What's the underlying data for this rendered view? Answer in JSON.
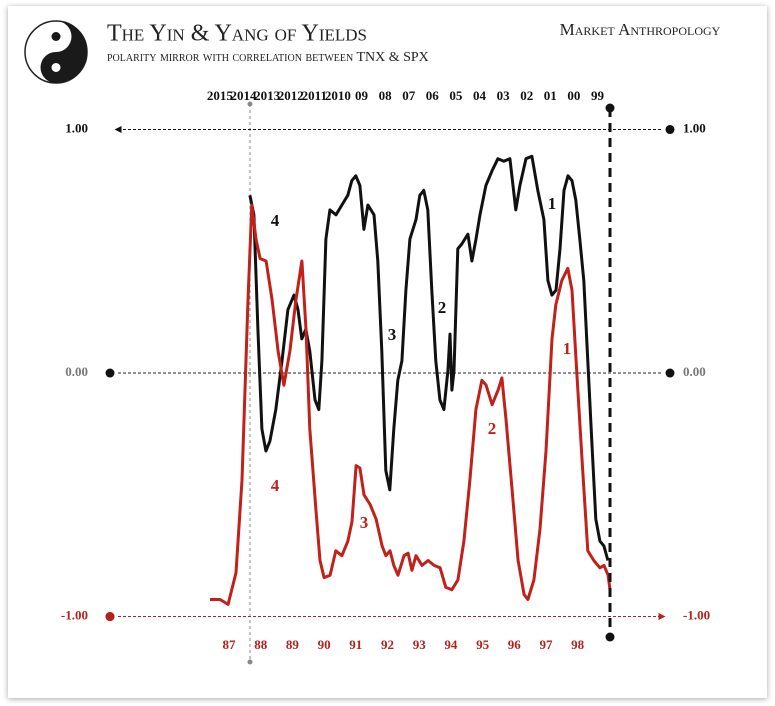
{
  "chart_data": {
    "type": "line",
    "title": "The Yin & Yang of Yields",
    "subtitle": "polarity mirror with correlation between TNX & SPX",
    "brand": "Market Anthropology",
    "ylim": [
      -1.1,
      1.12
    ],
    "yticks": [
      {
        "value": 1,
        "label": "1.00"
      },
      {
        "value": 0,
        "label": "0.00"
      },
      {
        "value": -1,
        "label": "-1.00"
      }
    ],
    "ytick_colors": [
      "#111111",
      "#777777",
      "#b3211b"
    ],
    "xlim": [
      1986.4,
      1999.02
    ],
    "xticks": [
      {
        "value": 1987,
        "label": "87"
      },
      {
        "value": 1988,
        "label": "88"
      },
      {
        "value": 1989,
        "label": "89"
      },
      {
        "value": 1990,
        "label": "90"
      },
      {
        "value": 1991,
        "label": "91"
      },
      {
        "value": 1992,
        "label": "92"
      },
      {
        "value": 1993,
        "label": "93"
      },
      {
        "value": 1994,
        "label": "94"
      },
      {
        "value": 1995,
        "label": "95"
      },
      {
        "value": 1996,
        "label": "96"
      },
      {
        "value": 1997,
        "label": "97"
      },
      {
        "value": 1998,
        "label": "98"
      }
    ],
    "x2lim": [
      2015.42,
      1998.47
    ],
    "x2ticks": [
      2015,
      2014,
      2013,
      2012,
      2011,
      2010,
      {
        "value": 2009,
        "label": "09"
      },
      {
        "value": 2008,
        "label": "08"
      },
      {
        "value": 2007,
        "label": "07"
      },
      {
        "value": 2006,
        "label": "06"
      },
      {
        "value": 2005,
        "label": "05"
      },
      {
        "value": 2004,
        "label": "04"
      },
      {
        "value": 2003,
        "label": "03"
      },
      {
        "value": 2002,
        "label": "02"
      },
      {
        "value": 2001,
        "label": "01"
      },
      {
        "value": 2000,
        "label": "00"
      },
      {
        "value": 1999,
        "label": "99"
      }
    ],
    "series": [
      {
        "color": "#111111",
        "axis": "x2",
        "x": [
          2013.73,
          2013.56,
          2013.39,
          2013.22,
          2013.05,
          2012.88,
          2012.63,
          2012.37,
          2012.12,
          2011.86,
          2011.69,
          2011.53,
          2011.36,
          2011.19,
          2010.97,
          2010.81,
          2010.68,
          2010.51,
          2010.34,
          2010.08,
          2009.83,
          2009.58,
          2009.41,
          2009.24,
          2009.07,
          2008.9,
          2008.73,
          2008.47,
          2008.31,
          2008.14,
          2007.97,
          2007.8,
          2007.63,
          2007.46,
          2007.29,
          2007.12,
          2006.95,
          2006.69,
          2006.53,
          2006.36,
          2006.19,
          2006.02,
          2005.85,
          2005.68,
          2005.51,
          2005.34,
          2005.25,
          2005.17,
          2005.08,
          2004.92,
          2004.75,
          2004.49,
          2004.32,
          2004.15,
          2003.98,
          2003.73,
          2003.47,
          2003.22,
          2002.97,
          2002.71,
          2002.46,
          2002.29,
          2002.03,
          2001.78,
          2001.53,
          2001.27,
          2001.1,
          2000.93,
          2000.76,
          2000.59,
          2000.42,
          2000.25,
          2000.08,
          1999.92,
          1999.75,
          1999.58,
          1999.41,
          1999.24,
          1999.07,
          1998.9,
          1998.73,
          1998.56
        ],
        "values": [
          0.73,
          0.65,
          0.18,
          -0.23,
          -0.32,
          -0.28,
          -0.15,
          0.05,
          0.26,
          0.32,
          0.26,
          0.14,
          0.18,
          0.09,
          -0.11,
          -0.15,
          0.05,
          0.55,
          0.67,
          0.65,
          0.69,
          0.73,
          0.79,
          0.81,
          0.77,
          0.59,
          0.69,
          0.65,
          0.46,
          0.09,
          -0.4,
          -0.48,
          -0.23,
          -0.03,
          0.05,
          0.34,
          0.55,
          0.63,
          0.73,
          0.75,
          0.67,
          0.34,
          0.05,
          -0.11,
          -0.15,
          0.01,
          0.16,
          -0.07,
          0.01,
          0.51,
          0.53,
          0.57,
          0.46,
          0.55,
          0.65,
          0.77,
          0.83,
          0.88,
          0.87,
          0.88,
          0.67,
          0.77,
          0.88,
          0.89,
          0.75,
          0.63,
          0.38,
          0.32,
          0.34,
          0.51,
          0.75,
          0.81,
          0.79,
          0.71,
          0.55,
          0.38,
          0.05,
          -0.28,
          -0.6,
          -0.69,
          -0.71,
          -0.77
        ]
      },
      {
        "color": "#c0211a",
        "axis": "x",
        "x": [
          1986.4,
          1986.72,
          1986.97,
          1987.22,
          1987.41,
          1987.6,
          1987.72,
          1987.85,
          1987.98,
          1988.17,
          1988.36,
          1988.55,
          1988.73,
          1988.92,
          1989.11,
          1989.3,
          1989.43,
          1989.55,
          1989.74,
          1989.87,
          1990.0,
          1990.19,
          1990.37,
          1990.56,
          1990.75,
          1990.88,
          1991.01,
          1991.13,
          1991.26,
          1991.45,
          1991.64,
          1991.83,
          1991.95,
          1992.08,
          1992.2,
          1992.33,
          1992.52,
          1992.65,
          1992.77,
          1992.9,
          1993.09,
          1993.28,
          1993.47,
          1993.66,
          1993.84,
          1994.03,
          1994.22,
          1994.41,
          1994.6,
          1994.79,
          1994.98,
          1995.11,
          1995.3,
          1995.49,
          1995.61,
          1995.74,
          1995.93,
          1996.12,
          1996.31,
          1996.43,
          1996.62,
          1996.81,
          1997.0,
          1997.19,
          1997.31,
          1997.5,
          1997.69,
          1997.82,
          1997.95,
          1998.14,
          1998.32,
          1998.51,
          1998.7,
          1998.83,
          1998.96,
          1999.02
        ],
        "values": [
          -0.93,
          -0.93,
          -0.95,
          -0.82,
          -0.44,
          0.3,
          0.69,
          0.55,
          0.47,
          0.46,
          0.3,
          0.09,
          -0.05,
          0.09,
          0.3,
          0.46,
          0.18,
          -0.23,
          -0.56,
          -0.77,
          -0.84,
          -0.83,
          -0.73,
          -0.75,
          -0.69,
          -0.61,
          -0.38,
          -0.39,
          -0.5,
          -0.54,
          -0.6,
          -0.71,
          -0.75,
          -0.73,
          -0.79,
          -0.83,
          -0.75,
          -0.74,
          -0.81,
          -0.75,
          -0.79,
          -0.77,
          -0.79,
          -0.8,
          -0.88,
          -0.89,
          -0.85,
          -0.69,
          -0.44,
          -0.15,
          -0.03,
          -0.05,
          -0.13,
          -0.07,
          -0.02,
          -0.19,
          -0.48,
          -0.77,
          -0.91,
          -0.93,
          -0.85,
          -0.64,
          -0.32,
          0.14,
          0.28,
          0.38,
          0.43,
          0.34,
          0.05,
          -0.36,
          -0.73,
          -0.77,
          -0.8,
          -0.79,
          -0.83,
          -0.89
        ]
      }
    ],
    "annotations": [
      {
        "text": "4",
        "color": "#111111"
      },
      {
        "text": "3",
        "color": "#111111"
      },
      {
        "text": "2",
        "color": "#111111"
      },
      {
        "text": "1",
        "color": "#111111"
      },
      {
        "text": "4",
        "color": "#c0211a"
      },
      {
        "text": "3",
        "color": "#c0211a"
      },
      {
        "text": "2",
        "color": "#c0211a"
      },
      {
        "text": "1",
        "color": "#c0211a"
      }
    ]
  }
}
